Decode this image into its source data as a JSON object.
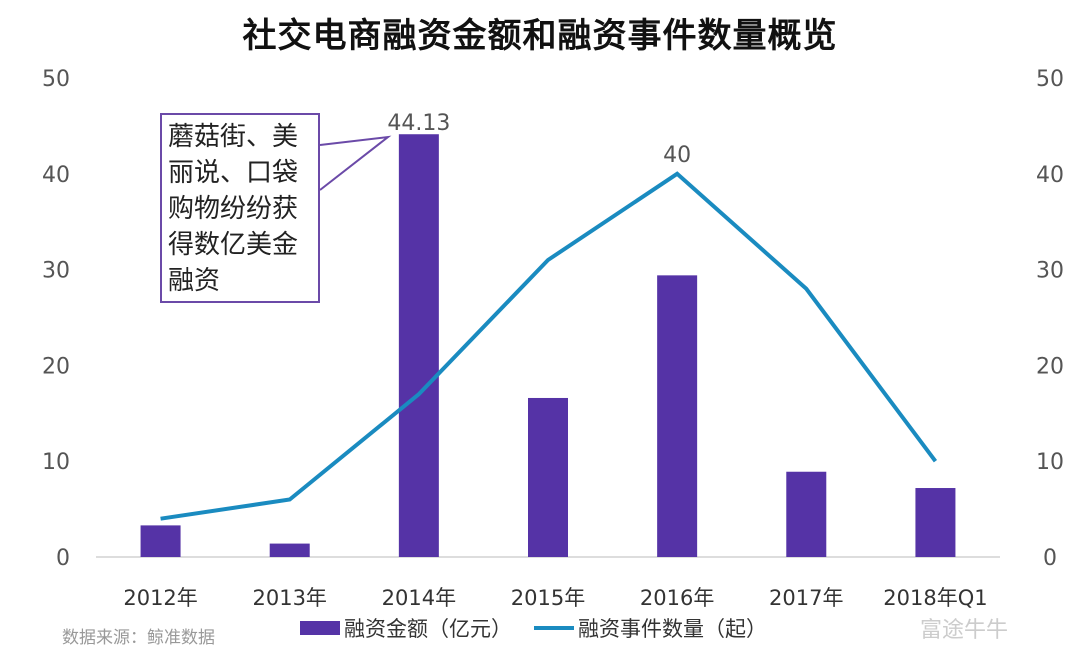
{
  "chart_data": {
    "type": "bar+line",
    "title": "社交电商融资金额和融资事件数量概览",
    "categories": [
      "2012年",
      "2013年",
      "2014年",
      "2015年",
      "2016年",
      "2017年",
      "2018年Q1"
    ],
    "series": [
      {
        "name": "融资金额（亿元）",
        "type": "bar",
        "axis": "left",
        "color": "#5533a6",
        "values": [
          3.3,
          1.4,
          44.13,
          16.6,
          29.4,
          8.9,
          7.2
        ]
      },
      {
        "name": "融资事件数量（起）",
        "type": "line",
        "axis": "right",
        "color": "#1a8bc0",
        "values": [
          4,
          6,
          17,
          31,
          40,
          28,
          10
        ]
      }
    ],
    "data_labels": {
      "bar_2014": "44.13",
      "line_2016": "40"
    },
    "ylim_left": [
      0,
      50
    ],
    "ylim_right": [
      0,
      50
    ],
    "yticks": [
      "0",
      "10",
      "20",
      "30",
      "40",
      "50"
    ],
    "grid": false,
    "legend_position": "bottom",
    "annotation": "蘑菇街、美丽说、口袋购物纷纷获得数亿美金融资"
  },
  "source": "数据来源：鲸准数据",
  "watermark": "富途牛牛"
}
